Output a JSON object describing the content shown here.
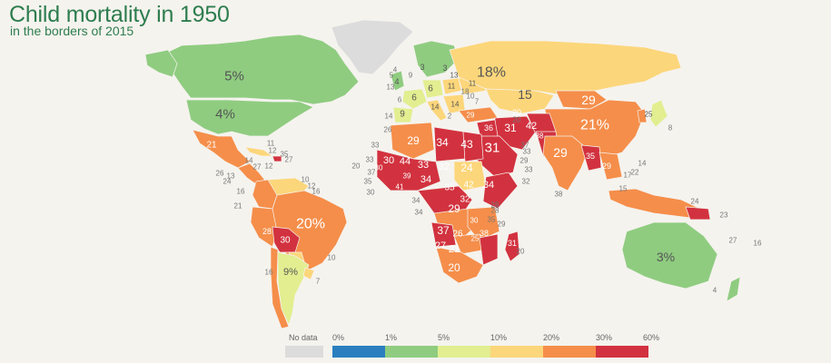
{
  "title": "Child mortality in 1950",
  "subtitle": "in the borders of 2015",
  "colors": {
    "nodata": "#dcdcdc",
    "b0_1": "#2b7fbf",
    "b1_5": "#8fcc80",
    "b5_10": "#e2ee90",
    "b10_20": "#fcd67a",
    "b20_30": "#f58e4a",
    "b30_60": "#d2323f"
  },
  "legend": {
    "nodata_label": "No data",
    "ticks": [
      "0%",
      "1%",
      "5%",
      "10%",
      "20%",
      "30%",
      "60%"
    ]
  },
  "big_labels": {
    "canada": "5%",
    "usa": "4%",
    "brazil": "20%",
    "argentina": "9%",
    "russia": "18%",
    "kazakhstan": "15",
    "mongolia": "29",
    "china": "21%",
    "india": "29",
    "australia": "3%",
    "bolivia": "30",
    "peru": "28",
    "mexico": "21",
    "greenland": ""
  },
  "africa_labels": {
    "algeria": "29",
    "libya": "34",
    "egypt": "43",
    "mali": "30",
    "niger": "33",
    "chad": "32",
    "sudan": "24",
    "mauritania": "44",
    "nigeria": "34",
    "cameroon": "35",
    "ethiopia": "34",
    "somalia": "42",
    "drc": "29",
    "angola": "37",
    "zambia": "26",
    "namibia": "27",
    "botswana": "21",
    "south_africa": "20",
    "mozambique": "38",
    "madagascar": "31",
    "senegal": "30",
    "guinea": "39",
    "ivory": "41",
    "kenya": "32",
    "tanzania": "30",
    "zimbabwe": "25"
  },
  "asia_labels": {
    "saudi": "31",
    "iran": "31",
    "afghanistan": "42",
    "iraq": "36",
    "turkey": "29",
    "pakistan": "38",
    "myanmar": "35",
    "thailand": "29",
    "indonesia": "",
    "korea": "25",
    "japan": "",
    "uzbek": "20"
  },
  "europe_labels": {
    "nordic1": "3",
    "nordic2": "3",
    "uk": "4",
    "france": "6",
    "germany": "6",
    "poland": "11",
    "ukraine": "11",
    "spain": "9",
    "italy": "14",
    "balkans": "14",
    "baltic": "13"
  },
  "small_labels": {
    "ca_11": "11",
    "ca_12": "12",
    "ca_35": "35",
    "ca_27": "27",
    "ca_14": "14",
    "ca_27b": "27",
    "ca_12b": "12",
    "ca_26": "26",
    "ca_24": "24",
    "ca_13": "13",
    "ca_16": "16",
    "ca_10": "10",
    "ca_12c": "12",
    "ca_16b": "16",
    "sa_21": "21",
    "sa_16": "16",
    "sa_10": "10",
    "sa_7": "7",
    "af_33": "33",
    "af_20": "20",
    "af_37": "37",
    "af_33b": "33",
    "af_35": "35",
    "af_30": "30",
    "af_34": "34",
    "af_34b": "34",
    "af_28": "28",
    "af_28b": "28",
    "af_35b": "35",
    "af_29": "29",
    "af_20b": "20",
    "me_37": "37",
    "me_33": "33",
    "me_29": "29",
    "me_33b": "33",
    "me_32": "32",
    "as_38": "38",
    "as_22": "22",
    "as_14": "14",
    "as_15": "15",
    "as_17": "17",
    "as_8": "8",
    "as_24": "24",
    "as_23": "23",
    "oc_27": "27",
    "oc_16": "16",
    "oc_4": "4",
    "eu_4": "4",
    "eu_13": "13",
    "eu_9": "9",
    "eu_14": "14",
    "eu_26": "26",
    "eu_20": "20",
    "eu_18": "18",
    "eu_7": "7",
    "eu_10": "10",
    "eu_5": "5",
    "eu_2": "2",
    "eu_6": "6"
  }
}
